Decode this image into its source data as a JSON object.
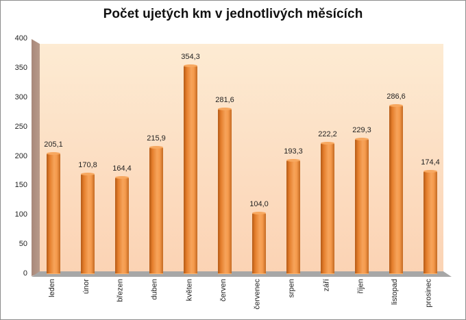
{
  "chart_data": {
    "type": "bar",
    "title": "Počet ujetých km v jednotlivých měsících",
    "xlabel": "",
    "ylabel": "",
    "ylim": [
      0,
      400
    ],
    "yticks": [
      "0",
      "50",
      "100",
      "150",
      "200",
      "250",
      "300",
      "350",
      "400"
    ],
    "grid": false,
    "legend": null,
    "style": "3d-cylinder",
    "bar_color": "#f0913f",
    "categories": [
      "leden",
      "únor",
      "březen",
      "duben",
      "květen",
      "červen",
      "červenec",
      "srpen",
      "září",
      "říjen",
      "listopad",
      "prosinec"
    ],
    "values": [
      205.1,
      170.8,
      164.4,
      215.9,
      354.3,
      281.6,
      104.0,
      193.3,
      222.2,
      229.3,
      286.6,
      174.4
    ],
    "value_labels": [
      "205,1",
      "170,8",
      "164,4",
      "215,9",
      "354,3",
      "281,6",
      "104,0",
      "193,3",
      "222,2",
      "229,3",
      "286,6",
      "174,4"
    ]
  }
}
